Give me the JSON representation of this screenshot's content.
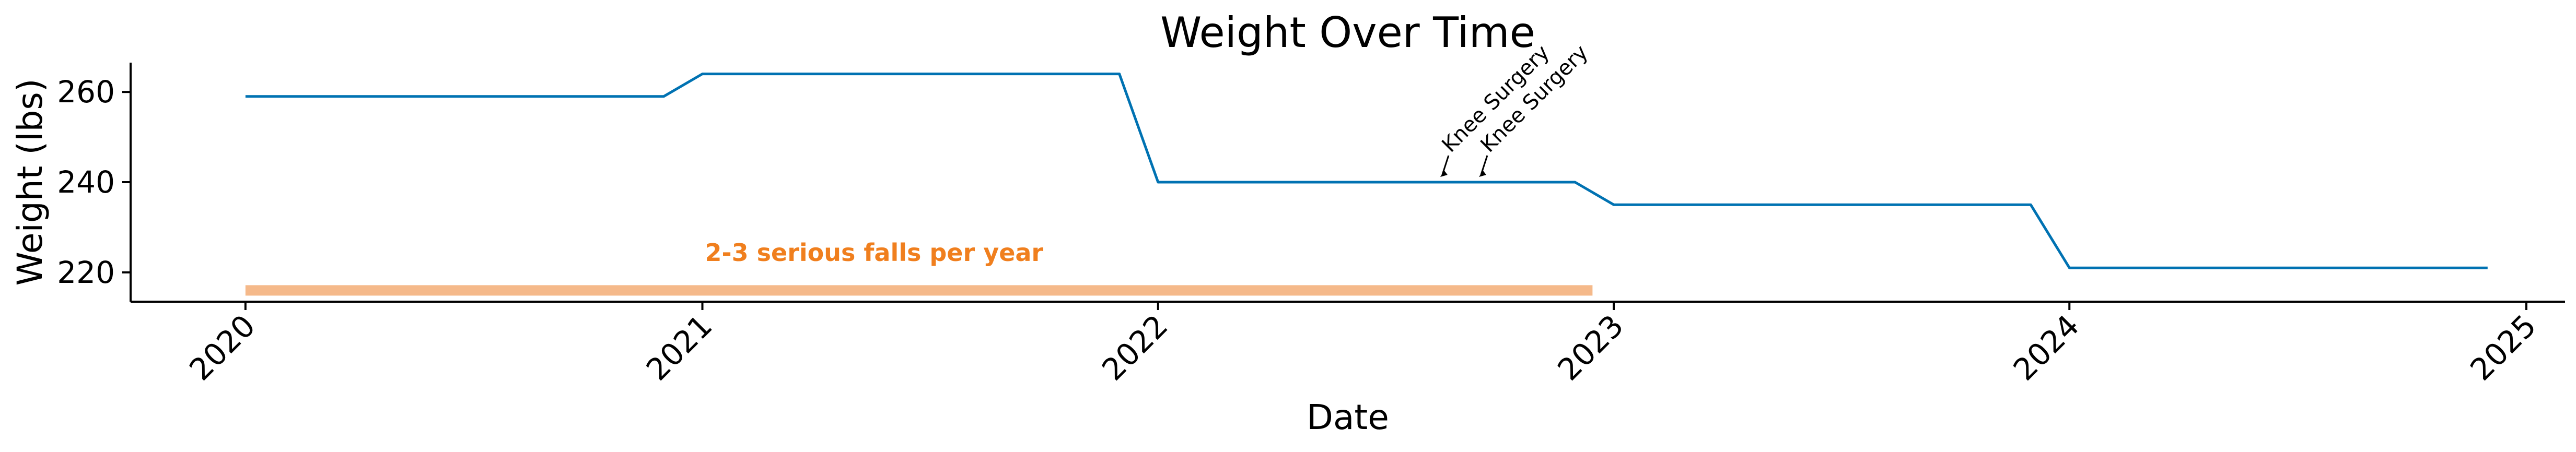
{
  "chart_data": {
    "type": "line",
    "title": "Weight Over Time",
    "xlabel": "Date",
    "ylabel": "Weight (lbs)",
    "x_ticks": [
      "2020",
      "2021",
      "2022",
      "2023",
      "2024",
      "2025"
    ],
    "y_ticks": [
      220,
      240,
      260
    ],
    "xlim": [
      "2019-10-01",
      "2025-02-01"
    ],
    "ylim": [
      213.5,
      266.5
    ],
    "grid": false,
    "series": [
      {
        "color": "#0072B2",
        "points": [
          {
            "x": "2020-01-01",
            "y": 259
          },
          {
            "x": "2020-12-01",
            "y": 259
          },
          {
            "x": "2021-01-01",
            "y": 264
          },
          {
            "x": "2021-12-01",
            "y": 264
          },
          {
            "x": "2022-01-01",
            "y": 240
          },
          {
            "x": "2022-12-01",
            "y": 240
          },
          {
            "x": "2023-01-01",
            "y": 235
          },
          {
            "x": "2023-12-01",
            "y": 235
          },
          {
            "x": "2024-01-01",
            "y": 221
          },
          {
            "x": "2024-12-01",
            "y": 221
          }
        ]
      }
    ],
    "annotations": [
      {
        "text": "Knee Surgery",
        "x": "2022-08-15",
        "y": 240
      },
      {
        "text": "Knee Surgery",
        "x": "2022-09-15",
        "y": 240
      }
    ],
    "band": {
      "label": "2-3 serious falls per year",
      "start": "2020-01-01",
      "end": "2022-12-15",
      "y": 216,
      "color": "#F5B98A",
      "label_color": "#F07F1E"
    }
  }
}
